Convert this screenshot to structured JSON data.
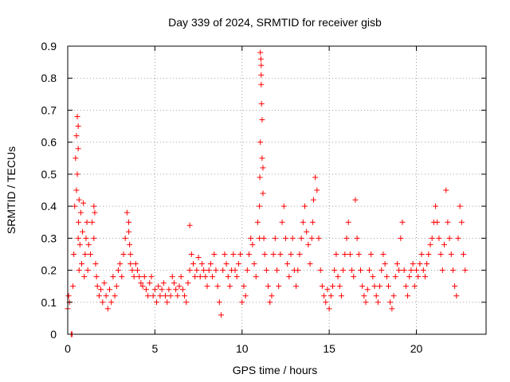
{
  "chart_data": {
    "type": "scatter",
    "title": "Day 339 of 2024, SRMTID for receiver gisb",
    "xlabel": "GPS time / hours",
    "ylabel": "SRMTID / TECUs",
    "xlim": [
      0,
      24
    ],
    "ylim": [
      0,
      0.9
    ],
    "xticks": [
      0,
      5,
      10,
      15,
      20
    ],
    "xtick_labels": [
      "0",
      "5",
      "10",
      "15",
      "20"
    ],
    "yticks": [
      0,
      0.1,
      0.2,
      0.3,
      0.4,
      0.5,
      0.6,
      0.7,
      0.8,
      0.9
    ],
    "ytick_labels": [
      "0",
      "0.1",
      "0.2",
      "0.3",
      "0.4",
      "0.5",
      "0.6",
      "0.7",
      "0.8",
      "0.9"
    ],
    "grid": true,
    "marker": "+",
    "marker_color": "#ff0000",
    "series": [
      {
        "name": "SRMTID",
        "x": [
          0.0,
          0.05,
          0.1,
          0.2,
          0.25,
          0.3,
          0.35,
          0.4,
          0.45,
          0.5,
          0.5,
          0.55,
          0.55,
          0.6,
          0.6,
          0.6,
          0.62,
          0.65,
          0.65,
          0.7,
          0.75,
          0.8,
          0.85,
          0.9,
          0.95,
          1.0,
          1.05,
          1.1,
          1.15,
          1.2,
          1.3,
          1.4,
          1.5,
          1.5,
          1.55,
          1.6,
          1.65,
          1.7,
          1.8,
          1.9,
          2.0,
          2.1,
          2.2,
          2.3,
          2.4,
          2.5,
          2.6,
          2.7,
          2.8,
          2.9,
          3.0,
          3.1,
          3.2,
          3.3,
          3.4,
          3.5,
          3.5,
          3.55,
          3.6,
          3.6,
          3.7,
          3.8,
          3.9,
          4.0,
          4.1,
          4.2,
          4.3,
          4.4,
          4.5,
          4.6,
          4.7,
          4.8,
          4.9,
          5.0,
          5.1,
          5.2,
          5.3,
          5.4,
          5.5,
          5.6,
          5.7,
          5.8,
          5.9,
          6.0,
          6.1,
          6.2,
          6.3,
          6.4,
          6.5,
          6.6,
          6.7,
          6.8,
          6.9,
          7.0,
          7.0,
          7.1,
          7.2,
          7.3,
          7.4,
          7.5,
          7.6,
          7.7,
          7.8,
          7.9,
          8.0,
          8.1,
          8.2,
          8.3,
          8.4,
          8.5,
          8.6,
          8.7,
          8.8,
          8.9,
          9.0,
          9.1,
          9.2,
          9.3,
          9.4,
          9.5,
          9.6,
          9.7,
          9.8,
          9.9,
          10.0,
          10.1,
          10.2,
          10.3,
          10.4,
          10.5,
          10.6,
          10.7,
          10.8,
          10.9,
          11.0,
          11.0,
          11.02,
          11.05,
          11.05,
          11.08,
          11.1,
          11.1,
          11.1,
          11.12,
          11.15,
          11.15,
          11.2,
          11.2,
          11.25,
          11.3,
          11.4,
          11.5,
          11.6,
          11.7,
          11.8,
          11.9,
          12.0,
          12.1,
          12.2,
          12.3,
          12.4,
          12.5,
          12.6,
          12.7,
          12.8,
          12.9,
          13.0,
          13.1,
          13.2,
          13.3,
          13.4,
          13.5,
          13.6,
          13.7,
          13.8,
          13.9,
          14.0,
          14.05,
          14.1,
          14.2,
          14.3,
          14.4,
          14.5,
          14.6,
          14.7,
          14.8,
          14.9,
          15.0,
          15.1,
          15.2,
          15.3,
          15.4,
          15.5,
          15.6,
          15.7,
          15.8,
          15.9,
          16.0,
          16.1,
          16.2,
          16.3,
          16.4,
          16.5,
          16.6,
          16.7,
          16.8,
          16.9,
          17.0,
          17.1,
          17.2,
          17.3,
          17.4,
          17.5,
          17.6,
          17.7,
          17.8,
          17.9,
          18.0,
          18.1,
          18.2,
          18.3,
          18.4,
          18.5,
          18.6,
          18.7,
          18.8,
          18.9,
          19.0,
          19.1,
          19.2,
          19.3,
          19.4,
          19.5,
          19.6,
          19.7,
          19.8,
          19.9,
          20.0,
          20.1,
          20.2,
          20.3,
          20.4,
          20.5,
          20.6,
          20.7,
          20.8,
          20.9,
          21.0,
          21.1,
          21.2,
          21.3,
          21.4,
          21.5,
          21.6,
          21.7,
          21.8,
          21.9,
          22.0,
          22.1,
          22.2,
          22.3,
          22.4,
          22.5,
          22.6,
          22.7,
          22.8
        ],
        "y": [
          0.08,
          0.12,
          0.1,
          0.0,
          0.0,
          0.15,
          0.25,
          0.4,
          0.55,
          0.62,
          0.45,
          0.68,
          0.5,
          0.58,
          0.3,
          0.65,
          0.35,
          0.2,
          0.42,
          0.28,
          0.38,
          0.22,
          0.32,
          0.41,
          0.18,
          0.25,
          0.3,
          0.35,
          0.2,
          0.28,
          0.25,
          0.35,
          0.4,
          0.3,
          0.38,
          0.22,
          0.18,
          0.15,
          0.12,
          0.14,
          0.1,
          0.16,
          0.12,
          0.08,
          0.14,
          0.1,
          0.18,
          0.12,
          0.15,
          0.2,
          0.22,
          0.18,
          0.25,
          0.3,
          0.38,
          0.35,
          0.32,
          0.28,
          0.25,
          0.22,
          0.2,
          0.18,
          0.22,
          0.2,
          0.18,
          0.16,
          0.15,
          0.18,
          0.14,
          0.12,
          0.16,
          0.18,
          0.12,
          0.14,
          0.1,
          0.15,
          0.12,
          0.14,
          0.16,
          0.12,
          0.1,
          0.14,
          0.12,
          0.18,
          0.16,
          0.14,
          0.12,
          0.15,
          0.18,
          0.14,
          0.12,
          0.1,
          0.16,
          0.2,
          0.34,
          0.25,
          0.22,
          0.18,
          0.2,
          0.24,
          0.18,
          0.22,
          0.2,
          0.18,
          0.15,
          0.2,
          0.22,
          0.18,
          0.25,
          0.2,
          0.15,
          0.1,
          0.06,
          0.2,
          0.25,
          0.22,
          0.18,
          0.15,
          0.2,
          0.25,
          0.2,
          0.18,
          0.22,
          0.25,
          0.1,
          0.15,
          0.12,
          0.2,
          0.25,
          0.3,
          0.28,
          0.22,
          0.18,
          0.35,
          0.4,
          0.3,
          0.49,
          0.6,
          0.88,
          0.86,
          0.84,
          0.81,
          0.78,
          0.72,
          0.67,
          0.55,
          0.44,
          0.52,
          0.3,
          0.25,
          0.2,
          0.15,
          0.1,
          0.12,
          0.25,
          0.3,
          0.2,
          0.15,
          0.25,
          0.35,
          0.4,
          0.3,
          0.22,
          0.18,
          0.25,
          0.3,
          0.2,
          0.15,
          0.2,
          0.25,
          0.3,
          0.35,
          0.4,
          0.32,
          0.28,
          0.22,
          0.3,
          0.35,
          0.42,
          0.49,
          0.45,
          0.3,
          0.2,
          0.15,
          0.12,
          0.1,
          0.14,
          0.08,
          0.12,
          0.15,
          0.2,
          0.25,
          0.18,
          0.15,
          0.12,
          0.2,
          0.25,
          0.3,
          0.35,
          0.25,
          0.2,
          0.18,
          0.42,
          0.3,
          0.25,
          0.2,
          0.15,
          0.12,
          0.1,
          0.14,
          0.2,
          0.25,
          0.18,
          0.15,
          0.12,
          0.1,
          0.15,
          0.2,
          0.25,
          0.22,
          0.18,
          0.15,
          0.1,
          0.08,
          0.12,
          0.18,
          0.22,
          0.2,
          0.3,
          0.35,
          0.2,
          0.15,
          0.12,
          0.18,
          0.2,
          0.22,
          0.15,
          0.2,
          0.18,
          0.22,
          0.25,
          0.2,
          0.18,
          0.22,
          0.25,
          0.28,
          0.3,
          0.35,
          0.4,
          0.35,
          0.3,
          0.25,
          0.2,
          0.28,
          0.45,
          0.35,
          0.3,
          0.25,
          0.2,
          0.15,
          0.12,
          0.3,
          0.4,
          0.35,
          0.25,
          0.2
        ]
      }
    ]
  }
}
